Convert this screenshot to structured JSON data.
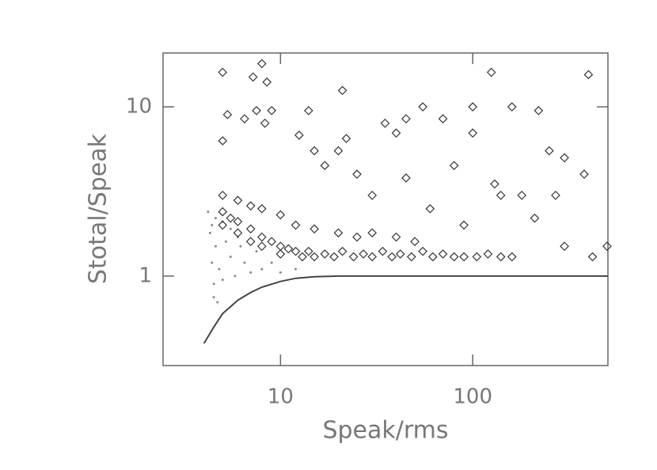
{
  "chart_data": {
    "type": "scatter",
    "xlabel": "Speak/rms",
    "ylabel": "Stotal/Speak",
    "xscale": "log",
    "yscale": "log",
    "xlim": [
      2.45,
      505
    ],
    "ylim": [
      0.296,
      20.8
    ],
    "xticks": [
      10,
      100
    ],
    "yticks": [
      1,
      10
    ],
    "series": [
      {
        "marker": "dot",
        "color": "#888888",
        "x": [
          4.2,
          4.3,
          4.4,
          4.5,
          4.5,
          4.6,
          4.7,
          4.8,
          5,
          5.2,
          5.5,
          5.8,
          6,
          6.5,
          7,
          7.5,
          8,
          9,
          10,
          12,
          4.4,
          4.6,
          5,
          5.5,
          6.2
        ],
        "values": [
          2.4,
          1.8,
          1.2,
          0.9,
          0.75,
          1.5,
          0.7,
          1.1,
          0.95,
          1.6,
          1.3,
          1.0,
          1.7,
          1.2,
          1.05,
          1.4,
          1.1,
          1.2,
          1.05,
          1.1,
          2.0,
          2.2,
          2.1,
          1.9,
          1.5
        ]
      },
      {
        "marker": "diamond",
        "color": "#333333",
        "x": [
          5,
          5,
          5.5,
          6,
          6,
          7,
          7,
          8,
          8,
          9,
          10,
          10,
          11,
          12,
          13,
          14,
          15,
          17,
          19,
          21,
          24,
          27,
          30,
          34,
          38,
          42,
          48,
          55,
          62,
          70,
          80,
          90,
          105,
          120,
          140,
          160,
          5,
          6,
          7,
          8,
          10,
          12,
          15,
          20,
          25,
          30,
          40,
          50,
          5,
          5.3,
          5,
          6.5,
          7.2,
          7.5,
          8,
          8.5,
          8.3,
          9,
          12.5,
          14,
          15,
          17,
          21,
          20,
          22,
          35,
          40,
          45,
          55,
          70,
          100,
          100,
          125,
          160,
          220,
          180,
          130,
          250,
          300,
          400,
          380,
          420,
          300,
          270,
          210,
          500,
          30,
          45,
          60,
          90,
          25,
          80,
          140
        ],
        "values": [
          2.4,
          2.0,
          2.2,
          2.1,
          1.8,
          1.9,
          1.6,
          1.7,
          1.5,
          1.6,
          1.5,
          1.35,
          1.45,
          1.4,
          1.3,
          1.4,
          1.3,
          1.35,
          1.3,
          1.4,
          1.3,
          1.35,
          1.3,
          1.4,
          1.3,
          1.35,
          1.3,
          1.4,
          1.3,
          1.35,
          1.3,
          1.3,
          1.3,
          1.35,
          1.3,
          1.3,
          3,
          2.8,
          2.6,
          2.5,
          2.3,
          2.0,
          1.9,
          1.8,
          1.7,
          1.8,
          1.7,
          1.6,
          16,
          9,
          6.3,
          8.5,
          15,
          9.5,
          18,
          14,
          8,
          9.5,
          6.8,
          9.5,
          5.5,
          4.5,
          12.5,
          5.5,
          6.5,
          8,
          7,
          8.5,
          10,
          8.5,
          10,
          7,
          16,
          10,
          9.5,
          3,
          3.5,
          5.5,
          5,
          15.5,
          4,
          1.3,
          1.5,
          3,
          2.2,
          1.5,
          3,
          3.8,
          2.5,
          2,
          4,
          4.5,
          3
        ]
      },
      {
        "marker": "line",
        "color": "#444444",
        "x": [
          4,
          4.5,
          5,
          6,
          7,
          8,
          10,
          12,
          15,
          20,
          30,
          50,
          100,
          200,
          505
        ],
        "values": [
          0.4,
          0.5,
          0.6,
          0.72,
          0.8,
          0.86,
          0.93,
          0.97,
          0.99,
          1,
          1,
          1,
          1,
          1,
          1
        ]
      }
    ]
  }
}
